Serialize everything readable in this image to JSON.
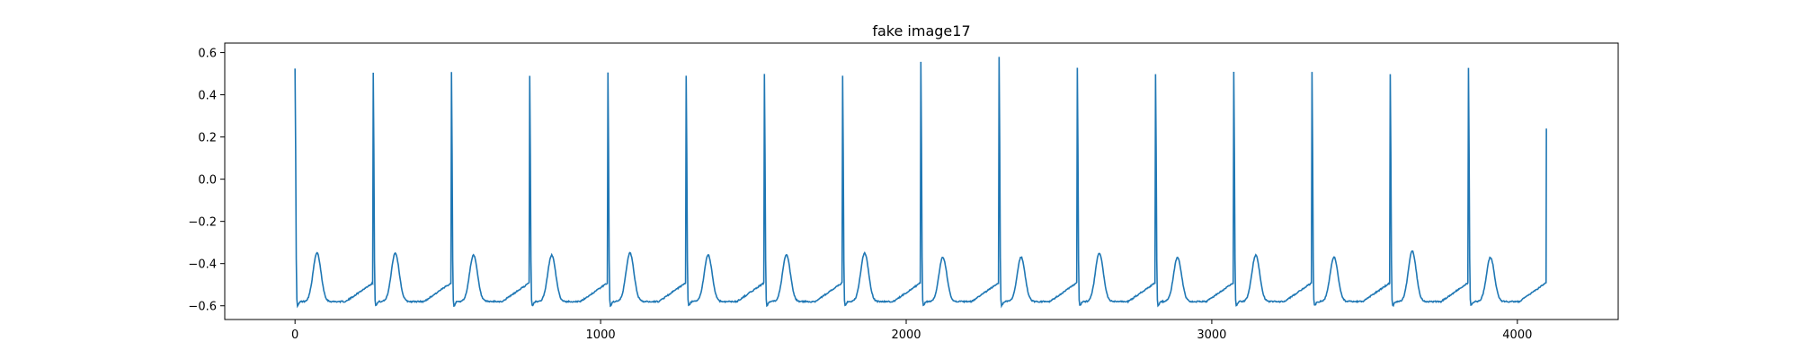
{
  "chart_data": {
    "type": "line",
    "title": "fake image17",
    "xlabel": "",
    "ylabel": "",
    "xlim": [
      -230,
      4330
    ],
    "ylim": [
      -0.665,
      0.645
    ],
    "grid": false,
    "legend": "none",
    "x_ticks": [
      0,
      1000,
      2000,
      3000,
      4000
    ],
    "x_tick_labels": [
      "0",
      "1000",
      "2000",
      "3000",
      "4000"
    ],
    "y_ticks": [
      -0.6,
      -0.4,
      -0.2,
      0.0,
      0.2,
      0.4,
      0.6
    ],
    "y_tick_labels": [
      "−0.6",
      "−0.4",
      "−0.2",
      "0.0",
      "0.2",
      "0.4",
      "0.6"
    ],
    "line_color": "#1f77b4",
    "series": [
      {
        "r_peaks": [
          0,
          256,
          512,
          768,
          1024,
          1280,
          1536,
          1792,
          2048,
          2304,
          2560,
          2816,
          3072,
          3328,
          3584,
          3840
        ],
        "r_amplitudes": [
          0.53,
          0.51,
          0.51,
          0.49,
          0.51,
          0.49,
          0.5,
          0.49,
          0.56,
          0.58,
          0.53,
          0.5,
          0.51,
          0.51,
          0.5,
          0.53
        ],
        "t_waves": [
          -0.35,
          -0.35,
          -0.36,
          -0.36,
          -0.35,
          -0.36,
          -0.36,
          -0.35,
          -0.37,
          -0.37,
          -0.35,
          -0.37,
          -0.36,
          -0.37,
          -0.34,
          -0.37
        ],
        "baseline_min": -0.58,
        "baseline_max": -0.49,
        "end_x": 4095,
        "end_y": 0.24
      }
    ]
  }
}
